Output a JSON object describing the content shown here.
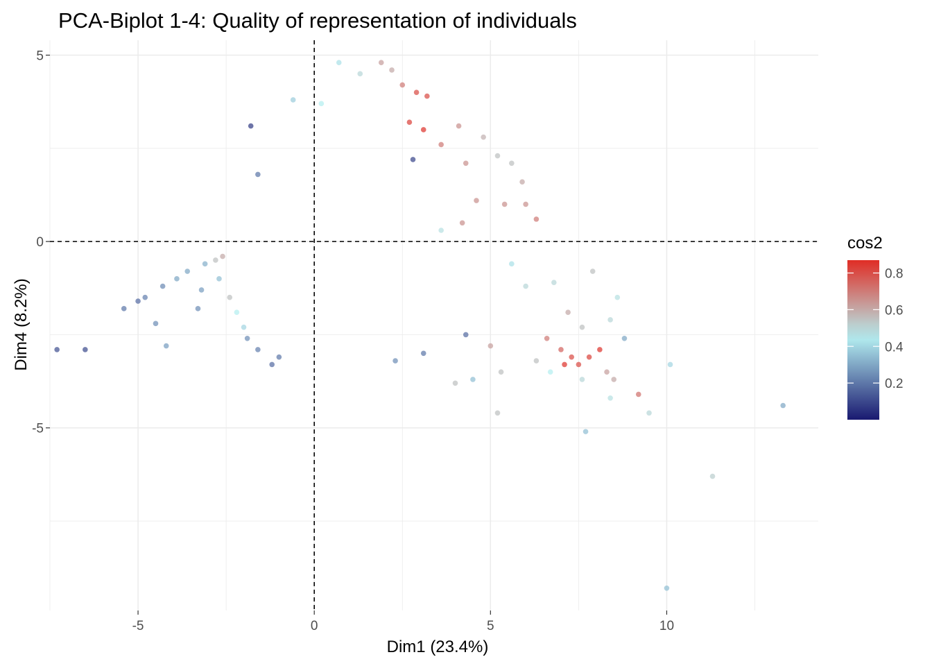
{
  "chart_data": {
    "type": "scatter",
    "title": "PCA-Biplot 1-4: Quality of representation of individuals",
    "xlabel": "Dim1 (23.4%)",
    "ylabel": "Dim4 (8.2%)",
    "xlim": [
      -7.5,
      14.3
    ],
    "ylim": [
      -9.9,
      5.4
    ],
    "x_ticks": [
      -5,
      0,
      5,
      10
    ],
    "x_tick_labels": [
      "-5",
      "0",
      "5",
      "10"
    ],
    "y_ticks": [
      -5,
      0,
      5
    ],
    "y_tick_labels": [
      "-5",
      "0",
      "5"
    ],
    "grid": true,
    "reference_lines": {
      "x": 0,
      "y": 0,
      "style": "dashed"
    },
    "color_variable": "cos2",
    "legend": {
      "title": "cos2",
      "position": "right",
      "range": [
        0.0,
        0.87
      ],
      "ticks": [
        0.2,
        0.4,
        0.6,
        0.8
      ],
      "tick_labels": [
        "0.2",
        "0.4",
        "0.6",
        "0.8"
      ],
      "colors": {
        "low": "#191970",
        "mid": "#B4EEF0",
        "high": "#E02D25"
      },
      "midpoint": 0.45
    },
    "points": [
      {
        "x": -7.3,
        "y": -2.9,
        "cos2": 0.12
      },
      {
        "x": -6.5,
        "y": -2.9,
        "cos2": 0.11
      },
      {
        "x": -5.0,
        "y": -1.6,
        "cos2": 0.18
      },
      {
        "x": -5.4,
        "y": -1.8,
        "cos2": 0.2
      },
      {
        "x": -4.8,
        "y": -1.5,
        "cos2": 0.22
      },
      {
        "x": -4.5,
        "y": -2.2,
        "cos2": 0.25
      },
      {
        "x": -4.2,
        "y": -2.8,
        "cos2": 0.28
      },
      {
        "x": -4.3,
        "y": -1.2,
        "cos2": 0.24
      },
      {
        "x": -3.9,
        "y": -1.0,
        "cos2": 0.3
      },
      {
        "x": -3.6,
        "y": -0.8,
        "cos2": 0.3
      },
      {
        "x": -3.2,
        "y": -1.3,
        "cos2": 0.28
      },
      {
        "x": -3.1,
        "y": -0.6,
        "cos2": 0.32
      },
      {
        "x": -3.3,
        "y": -1.8,
        "cos2": 0.25
      },
      {
        "x": -2.8,
        "y": -0.5,
        "cos2": 0.55
      },
      {
        "x": -2.6,
        "y": -0.4,
        "cos2": 0.6
      },
      {
        "x": -2.7,
        "y": -1.0,
        "cos2": 0.35
      },
      {
        "x": -2.4,
        "y": -1.5,
        "cos2": 0.55
      },
      {
        "x": -2.2,
        "y": -1.9,
        "cos2": 0.45
      },
      {
        "x": -2.0,
        "y": -2.3,
        "cos2": 0.4
      },
      {
        "x": -1.9,
        "y": -2.6,
        "cos2": 0.25
      },
      {
        "x": -1.6,
        "y": -2.9,
        "cos2": 0.22
      },
      {
        "x": -1.2,
        "y": -3.3,
        "cos2": 0.18
      },
      {
        "x": -1.0,
        "y": -3.1,
        "cos2": 0.2
      },
      {
        "x": -1.8,
        "y": 3.1,
        "cos2": 0.08
      },
      {
        "x": -1.6,
        "y": 1.8,
        "cos2": 0.2
      },
      {
        "x": -0.6,
        "y": 3.8,
        "cos2": 0.38
      },
      {
        "x": 0.2,
        "y": 3.7,
        "cos2": 0.45
      },
      {
        "x": 0.7,
        "y": 4.8,
        "cos2": 0.42
      },
      {
        "x": 1.3,
        "y": 4.5,
        "cos2": 0.5
      },
      {
        "x": 1.9,
        "y": 4.8,
        "cos2": 0.62
      },
      {
        "x": 2.2,
        "y": 4.6,
        "cos2": 0.6
      },
      {
        "x": 2.5,
        "y": 4.2,
        "cos2": 0.7
      },
      {
        "x": 2.9,
        "y": 4.0,
        "cos2": 0.8
      },
      {
        "x": 3.2,
        "y": 3.9,
        "cos2": 0.8
      },
      {
        "x": 2.7,
        "y": 3.2,
        "cos2": 0.82
      },
      {
        "x": 3.1,
        "y": 3.0,
        "cos2": 0.85
      },
      {
        "x": 2.8,
        "y": 2.2,
        "cos2": 0.1
      },
      {
        "x": 3.6,
        "y": 2.6,
        "cos2": 0.7
      },
      {
        "x": 4.1,
        "y": 3.1,
        "cos2": 0.65
      },
      {
        "x": 4.3,
        "y": 2.1,
        "cos2": 0.65
      },
      {
        "x": 4.8,
        "y": 2.8,
        "cos2": 0.58
      },
      {
        "x": 5.2,
        "y": 2.3,
        "cos2": 0.55
      },
      {
        "x": 5.6,
        "y": 2.1,
        "cos2": 0.55
      },
      {
        "x": 5.9,
        "y": 1.6,
        "cos2": 0.6
      },
      {
        "x": 6.0,
        "y": 1.0,
        "cos2": 0.65
      },
      {
        "x": 6.3,
        "y": 0.6,
        "cos2": 0.7
      },
      {
        "x": 5.4,
        "y": 1.0,
        "cos2": 0.65
      },
      {
        "x": 4.6,
        "y": 1.1,
        "cos2": 0.65
      },
      {
        "x": 4.2,
        "y": 0.5,
        "cos2": 0.65
      },
      {
        "x": 3.6,
        "y": 0.3,
        "cos2": 0.48
      },
      {
        "x": 5.6,
        "y": -0.6,
        "cos2": 0.42
      },
      {
        "x": 6.0,
        "y": -1.2,
        "cos2": 0.5
      },
      {
        "x": 6.8,
        "y": -1.1,
        "cos2": 0.5
      },
      {
        "x": 7.2,
        "y": -1.9,
        "cos2": 0.6
      },
      {
        "x": 7.6,
        "y": -2.3,
        "cos2": 0.55
      },
      {
        "x": 6.6,
        "y": -2.6,
        "cos2": 0.7
      },
      {
        "x": 7.0,
        "y": -2.9,
        "cos2": 0.75
      },
      {
        "x": 7.3,
        "y": -3.1,
        "cos2": 0.8
      },
      {
        "x": 7.5,
        "y": -3.3,
        "cos2": 0.8
      },
      {
        "x": 7.8,
        "y": -3.1,
        "cos2": 0.82
      },
      {
        "x": 8.1,
        "y": -2.9,
        "cos2": 0.85
      },
      {
        "x": 7.1,
        "y": -3.3,
        "cos2": 0.85
      },
      {
        "x": 8.3,
        "y": -3.5,
        "cos2": 0.62
      },
      {
        "x": 8.5,
        "y": -3.7,
        "cos2": 0.6
      },
      {
        "x": 8.8,
        "y": -2.6,
        "cos2": 0.3
      },
      {
        "x": 9.2,
        "y": -4.1,
        "cos2": 0.72
      },
      {
        "x": 9.5,
        "y": -4.6,
        "cos2": 0.5
      },
      {
        "x": 8.4,
        "y": -4.2,
        "cos2": 0.48
      },
      {
        "x": 7.6,
        "y": -3.7,
        "cos2": 0.5
      },
      {
        "x": 6.7,
        "y": -3.5,
        "cos2": 0.45
      },
      {
        "x": 6.3,
        "y": -3.2,
        "cos2": 0.55
      },
      {
        "x": 5.3,
        "y": -3.5,
        "cos2": 0.55
      },
      {
        "x": 5.0,
        "y": -2.8,
        "cos2": 0.62
      },
      {
        "x": 5.2,
        "y": -4.6,
        "cos2": 0.55
      },
      {
        "x": 4.5,
        "y": -3.7,
        "cos2": 0.35
      },
      {
        "x": 4.0,
        "y": -3.8,
        "cos2": 0.55
      },
      {
        "x": 4.3,
        "y": -2.5,
        "cos2": 0.18
      },
      {
        "x": 3.1,
        "y": -3.0,
        "cos2": 0.2
      },
      {
        "x": 2.3,
        "y": -3.2,
        "cos2": 0.25
      },
      {
        "x": 10.1,
        "y": -3.3,
        "cos2": 0.4
      },
      {
        "x": 13.3,
        "y": -4.4,
        "cos2": 0.3
      },
      {
        "x": 7.7,
        "y": -5.1,
        "cos2": 0.35
      },
      {
        "x": 11.3,
        "y": -6.3,
        "cos2": 0.52
      },
      {
        "x": 10.0,
        "y": -9.3,
        "cos2": 0.35
      },
      {
        "x": 8.6,
        "y": -1.5,
        "cos2": 0.48
      },
      {
        "x": 8.4,
        "y": -2.1,
        "cos2": 0.5
      },
      {
        "x": 7.9,
        "y": -0.8,
        "cos2": 0.55
      }
    ]
  }
}
